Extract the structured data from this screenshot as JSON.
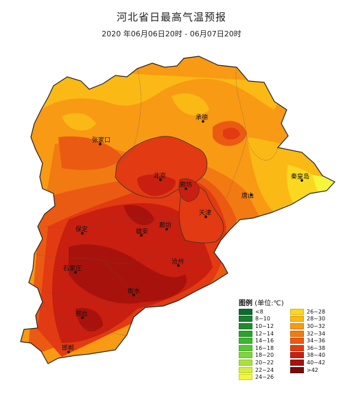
{
  "title": "河北省日最高气温预报",
  "subtitle": "2020 年06月06日20时 - 06月07日20时",
  "legend": {
    "title": "图例",
    "unit": "(单位:℃)",
    "left_items": [
      {
        "label": "<8",
        "color": "#0b6b2b"
      },
      {
        "label": "8~10",
        "color": "#1a7f2e"
      },
      {
        "label": "10~12",
        "color": "#238b2d"
      },
      {
        "label": "12~14",
        "color": "#2ea02e"
      },
      {
        "label": "14~16",
        "color": "#3cb531"
      },
      {
        "label": "16~18",
        "color": "#55c834"
      },
      {
        "label": "18~20",
        "color": "#7ed63a"
      },
      {
        "label": "20~22",
        "color": "#a8e23c"
      },
      {
        "label": "22~24",
        "color": "#d4ee3a"
      },
      {
        "label": "24~26",
        "color": "#f5f53a"
      }
    ],
    "right_items": [
      {
        "label": "26~28",
        "color": "#fbd820"
      },
      {
        "label": "28~30",
        "color": "#fbb915"
      },
      {
        "label": "30~32",
        "color": "#f89a14"
      },
      {
        "label": "32~34",
        "color": "#f27a12"
      },
      {
        "label": "34~36",
        "color": "#eb5a12"
      },
      {
        "label": "36~38",
        "color": "#e23a12"
      },
      {
        "label": "38~40",
        "color": "#c81f10"
      },
      {
        "label": "40~42",
        "color": "#a8120c"
      },
      {
        "label": ">42",
        "color": "#7a0a08"
      }
    ]
  },
  "cities": {
    "zhangjiakou": "张家口",
    "chengde": "承德",
    "qinhuangdao": "秦皇岛",
    "beijing": "北京",
    "langfang": "廊坊",
    "tangshan": "唐山",
    "tianjin": "天津",
    "baoding": "保定",
    "xiongan": "雄安",
    "cangzhou": "沧州",
    "shijiazhuang": "石家庄",
    "hengshui": "衡水",
    "xingtai": "邢台",
    "handan": "邯郸"
  }
}
